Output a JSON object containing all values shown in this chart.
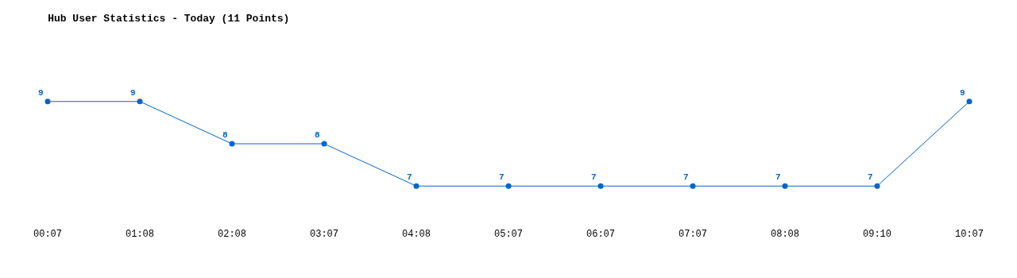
{
  "chart_data": {
    "type": "line",
    "title": "Hub User Statistics - Today (11 Points)",
    "categories": [
      "00:07",
      "01:08",
      "02:08",
      "03:07",
      "04:08",
      "05:07",
      "06:07",
      "07:07",
      "08:08",
      "09:10",
      "10:07"
    ],
    "values": [
      9,
      9,
      8,
      8,
      7,
      7,
      7,
      7,
      7,
      7,
      9
    ],
    "color": "#0066cc",
    "marker": "circle",
    "data_labels": true
  }
}
